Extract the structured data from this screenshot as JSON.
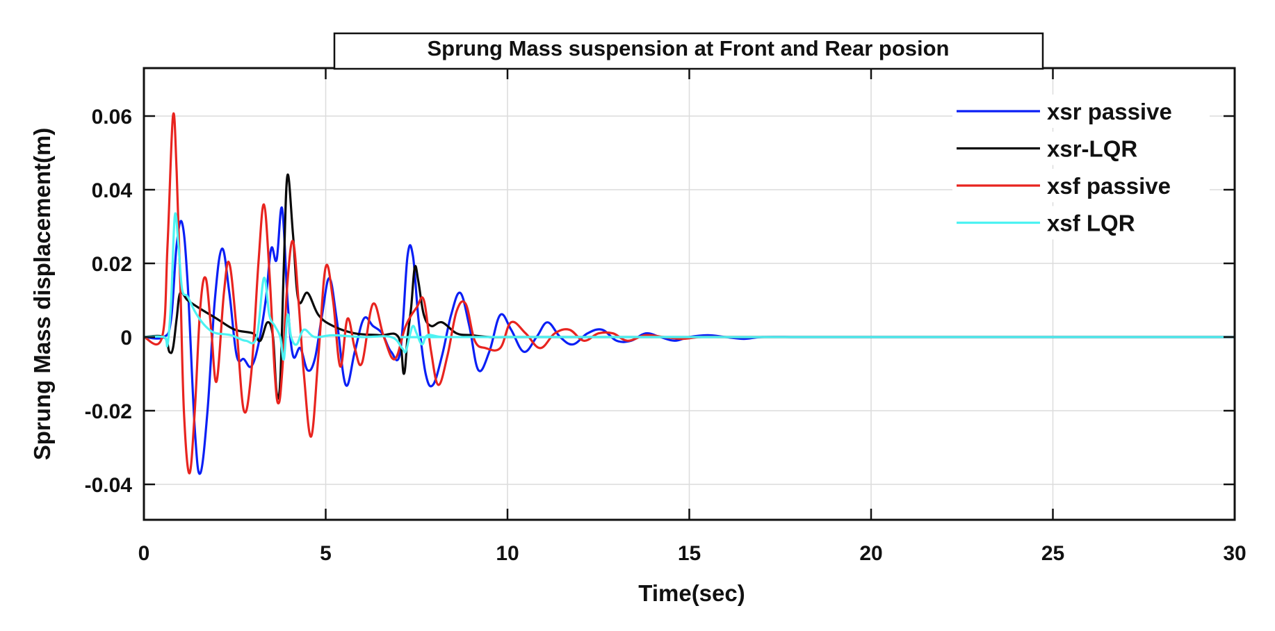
{
  "chart_data": {
    "type": "line",
    "title": "Sprung Mass suspension at Front and Rear posion",
    "xlabel": "Time(sec)",
    "ylabel": "Sprung Mass displacement(m)",
    "xlim": [
      0,
      30
    ],
    "ylim": [
      -0.05,
      0.072
    ],
    "xticks": [
      0,
      5,
      10,
      15,
      20,
      25,
      30
    ],
    "xtick_labels": [
      "0",
      "5",
      "10",
      "15",
      "20",
      "25",
      "30"
    ],
    "yticks": [
      -0.04,
      -0.02,
      0,
      0.02,
      0.04,
      0.06
    ],
    "ytick_labels": [
      "-0.04",
      "-0.02",
      "0",
      "0.02",
      "0.04",
      "0.06"
    ],
    "grid": true,
    "legend_position": "upper right",
    "series": [
      {
        "name": "xsr passive",
        "color": "#0a1ff5",
        "x": [
          0,
          0.55,
          0.75,
          0.9,
          1.05,
          1.2,
          1.4,
          1.55,
          1.75,
          1.95,
          2.15,
          2.35,
          2.55,
          2.75,
          2.95,
          3.15,
          3.35,
          3.5,
          3.65,
          3.8,
          3.95,
          4.1,
          4.3,
          4.5,
          4.7,
          4.9,
          5.1,
          5.3,
          5.55,
          5.8,
          6.05,
          6.3,
          6.55,
          6.8,
          7.05,
          7.25,
          7.4,
          7.55,
          7.75,
          7.95,
          8.2,
          8.45,
          8.7,
          8.95,
          9.2,
          9.5,
          9.8,
          10.1,
          10.45,
          10.8,
          11.1,
          11.45,
          11.8,
          12.2,
          12.6,
          13.0,
          13.4,
          13.8,
          14.2,
          14.6,
          15.0,
          15.5,
          16.0,
          16.5,
          17.0,
          18.0,
          19.0,
          20.0,
          22.0,
          25.0,
          30.0
        ],
        "y": [
          0,
          0,
          0.005,
          0.025,
          0.031,
          0.015,
          -0.025,
          -0.037,
          -0.02,
          0.01,
          0.024,
          0.012,
          -0.005,
          -0.006,
          -0.008,
          -0.002,
          0.01,
          0.024,
          0.021,
          0.035,
          0.01,
          -0.005,
          -0.003,
          -0.009,
          -0.006,
          0.006,
          0.016,
          0.005,
          -0.013,
          -0.004,
          0.005,
          0.003,
          0.001,
          -0.004,
          -0.004,
          0.022,
          0.022,
          0.005,
          -0.01,
          -0.013,
          -0.005,
          0.006,
          0.012,
          0.003,
          -0.009,
          -0.004,
          0.006,
          0.002,
          -0.004,
          0.0,
          0.004,
          0.0,
          -0.002,
          0.001,
          0.002,
          -0.001,
          -0.001,
          0.001,
          0.0,
          -0.001,
          0.0,
          0.0005,
          0.0,
          -0.0005,
          0.0,
          0.0,
          0.0,
          0.0,
          0.0,
          0.0,
          0.0
        ]
      },
      {
        "name": "xsr-LQR",
        "color": "#0a0a0a",
        "x": [
          0,
          0.55,
          0.7,
          0.8,
          0.9,
          1.0,
          1.2,
          1.5,
          2.0,
          2.5,
          3.0,
          3.2,
          3.4,
          3.55,
          3.65,
          3.75,
          3.85,
          3.95,
          4.1,
          4.25,
          4.5,
          4.8,
          5.2,
          5.8,
          6.5,
          7.0,
          7.15,
          7.25,
          7.35,
          7.45,
          7.55,
          7.7,
          7.9,
          8.2,
          8.6,
          9.0,
          9.5,
          10.0,
          12.0,
          15.0,
          30.0
        ],
        "y": [
          0,
          0,
          -0.004,
          -0.003,
          0.005,
          0.012,
          0.01,
          0.008,
          0.005,
          0.002,
          0.001,
          -0.001,
          0.004,
          0.0,
          -0.015,
          -0.012,
          0.02,
          0.044,
          0.028,
          0.01,
          0.012,
          0.006,
          0.003,
          0.001,
          0.0005,
          0.0,
          -0.01,
          0.0,
          0.008,
          0.019,
          0.015,
          0.006,
          0.003,
          0.004,
          0.001,
          0.0005,
          0.0,
          0.0,
          0.0,
          0.0,
          0.0
        ]
      },
      {
        "name": "xsf passive",
        "color": "#e8241f",
        "x": [
          0,
          0.5,
          0.65,
          0.8,
          0.9,
          1.0,
          1.1,
          1.25,
          1.4,
          1.55,
          1.7,
          1.85,
          2.0,
          2.2,
          2.35,
          2.55,
          2.75,
          2.95,
          3.15,
          3.3,
          3.45,
          3.6,
          3.7,
          3.8,
          3.95,
          4.1,
          4.25,
          4.4,
          4.6,
          4.8,
          5.0,
          5.2,
          5.4,
          5.6,
          5.8,
          6.0,
          6.3,
          6.6,
          6.9,
          7.2,
          7.5,
          7.7,
          7.9,
          8.1,
          8.35,
          8.6,
          8.85,
          9.1,
          9.4,
          9.8,
          10.1,
          10.5,
          10.9,
          11.3,
          11.7,
          12.1,
          12.5,
          12.9,
          13.3,
          13.8,
          14.3,
          14.8,
          15.3,
          16.0,
          17.0,
          18.0,
          20.0,
          30.0
        ],
        "y": [
          0,
          0.0,
          0.025,
          0.06,
          0.045,
          0.015,
          -0.02,
          -0.037,
          -0.02,
          0.008,
          0.016,
          0.002,
          -0.012,
          0.012,
          0.02,
          0.002,
          -0.02,
          -0.01,
          0.02,
          0.036,
          0.018,
          -0.01,
          -0.018,
          -0.01,
          0.015,
          0.026,
          0.01,
          -0.01,
          -0.027,
          -0.005,
          0.019,
          0.01,
          -0.008,
          0.005,
          -0.003,
          -0.007,
          0.009,
          0.0,
          -0.006,
          0.003,
          0.008,
          0.01,
          -0.004,
          -0.013,
          -0.005,
          0.007,
          0.009,
          -0.001,
          -0.003,
          -0.003,
          0.004,
          0.001,
          -0.003,
          0.001,
          0.002,
          -0.001,
          0.001,
          0.001,
          -0.001,
          0.0005,
          0.0,
          -0.0005,
          0.0,
          0.0,
          0.0,
          0.0,
          0.0,
          0.0
        ]
      },
      {
        "name": "xsf LQR",
        "color": "#4df2f2",
        "x": [
          0,
          0.55,
          0.65,
          0.75,
          0.85,
          0.95,
          1.05,
          1.2,
          1.4,
          1.6,
          1.8,
          2.0,
          2.4,
          2.8,
          3.1,
          3.3,
          3.45,
          3.6,
          3.75,
          3.85,
          3.95,
          4.05,
          4.2,
          4.4,
          4.7,
          5.2,
          6.0,
          6.8,
          7.1,
          7.2,
          7.3,
          7.4,
          7.5,
          7.65,
          7.8,
          8.2,
          9.0,
          30.0
        ],
        "y": [
          0,
          0,
          -0.002,
          0.01,
          0.033,
          0.025,
          0.013,
          0.011,
          0.007,
          0.004,
          0.002,
          0.001,
          0.0005,
          -0.001,
          0.0,
          0.016,
          0.006,
          0.003,
          0.0,
          -0.006,
          0.006,
          0.0,
          -0.002,
          0.002,
          0.0,
          0.0005,
          0.0,
          0.0,
          -0.003,
          -0.004,
          0.0,
          0.003,
          0.001,
          -0.002,
          0.0005,
          0.0,
          0.0,
          0.0
        ]
      }
    ]
  },
  "legend": {
    "items": [
      {
        "label": "xsr passive",
        "color": "#0a1ff5"
      },
      {
        "label": "xsr-LQR",
        "color": "#0a0a0a"
      },
      {
        "label": "xsf passive",
        "color": "#e8241f"
      },
      {
        "label": "xsf LQR",
        "color": "#4df2f2"
      }
    ]
  }
}
